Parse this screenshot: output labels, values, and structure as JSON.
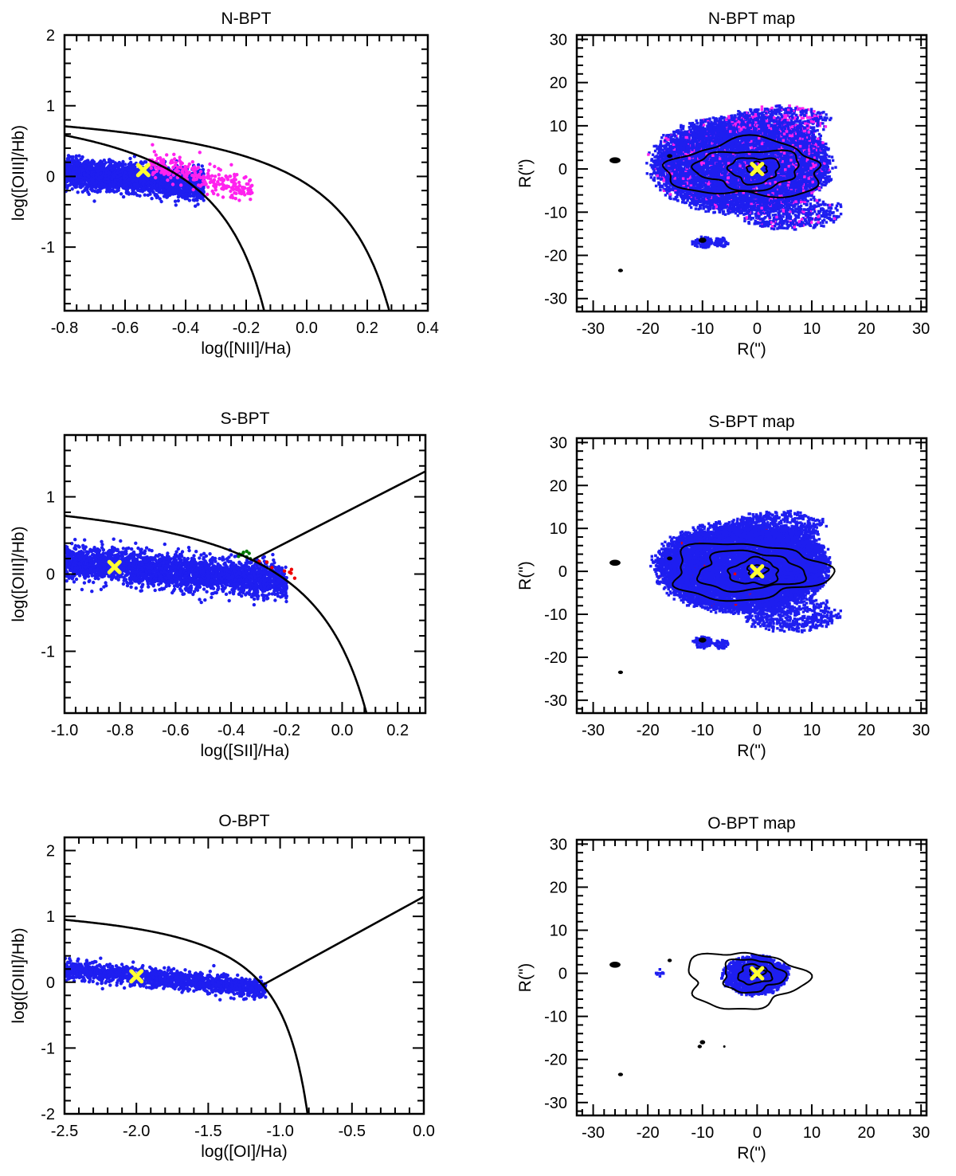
{
  "colors": {
    "star_forming": "#1e1ef0",
    "composite": "#ff22ee",
    "seyfert": "#007a00",
    "liner": "#ee0000",
    "nucleus_marker": "#ffff33",
    "curve": "#000000"
  },
  "chart_data": [
    {
      "type": "scatter",
      "title": "N-BPT",
      "xlabel": "log([NII]/Ha)",
      "ylabel": "log([OIII]/Hb)",
      "xlim": [
        -0.8,
        0.4
      ],
      "ylim": [
        -1.9,
        2.0
      ],
      "xticks": [
        -0.8,
        -0.6,
        -0.4,
        -0.2,
        0.0,
        0.2,
        0.4
      ],
      "xtick_labels": [
        "-0.8",
        "-0.6",
        "-0.4",
        "-0.2",
        "0.0",
        "0.2",
        "0.4"
      ],
      "yticks": [
        -1,
        0,
        1,
        2
      ],
      "ytick_labels": [
        "-1",
        "0",
        "1",
        "2"
      ],
      "curves": [
        {
          "kind": "kauffmann",
          "a": 0.61,
          "b": 0.05,
          "c": 1.3
        },
        {
          "kind": "kewley",
          "a": 0.61,
          "b": 0.47,
          "c": 1.19
        }
      ],
      "clouds": [
        {
          "group": "star-forming",
          "x": [
            -0.8,
            -0.34
          ],
          "y_center": [
            0.06,
            -0.12
          ],
          "y_spread": 0.2,
          "count": 2600
        },
        {
          "group": "composite",
          "x": [
            -0.52,
            -0.18
          ],
          "y_center": [
            0.2,
            -0.2
          ],
          "y_spread": 0.2,
          "count": 260
        }
      ],
      "nucleus": {
        "x": -0.54,
        "y": 0.09
      }
    },
    {
      "type": "scatter",
      "title": "S-BPT",
      "xlabel": "log([SII]/Ha)",
      "ylabel": "log([OIII]/Hb)",
      "xlim": [
        -1.0,
        0.3
      ],
      "ylim": [
        -1.8,
        1.8
      ],
      "xticks": [
        -1.0,
        -0.8,
        -0.6,
        -0.4,
        -0.2,
        0.0,
        0.2
      ],
      "xtick_labels": [
        "-1.0",
        "-0.8",
        "-0.6",
        "-0.4",
        "-0.2",
        "0.0",
        "0.2"
      ],
      "yticks": [
        -1,
        0,
        1
      ],
      "ytick_labels": [
        "-1",
        "0",
        "1"
      ],
      "curves": [
        {
          "kind": "kewley",
          "a": 0.72,
          "b": 0.32,
          "c": 1.3
        },
        {
          "kind": "line",
          "x0": -0.32,
          "y0": 0.19,
          "x1": 0.3,
          "y1": 1.33
        }
      ],
      "clouds": [
        {
          "group": "star-forming",
          "x": [
            -1.0,
            -0.2
          ],
          "y_center": [
            0.17,
            -0.1
          ],
          "y_spread": 0.22,
          "count": 2800
        },
        {
          "group": "seyfert",
          "x": [
            -0.38,
            -0.33
          ],
          "y_center": [
            0.27,
            0.22
          ],
          "y_spread": 0.04,
          "count": 10
        },
        {
          "group": "liner",
          "x": [
            -0.3,
            -0.17
          ],
          "y_center": [
            0.16,
            0.0
          ],
          "y_spread": 0.06,
          "count": 8
        }
      ],
      "nucleus": {
        "x": -0.82,
        "y": 0.09
      }
    },
    {
      "type": "scatter",
      "title": "O-BPT",
      "xlabel": "log([OI]/Ha)",
      "ylabel": "log([OIII]/Hb)",
      "xlim": [
        -2.5,
        0.0
      ],
      "ylim": [
        -2.0,
        2.2
      ],
      "xticks": [
        -2.5,
        -2.0,
        -1.5,
        -1.0,
        -0.5,
        0.0
      ],
      "xtick_labels": [
        "-2.5",
        "-2.0",
        "-1.5",
        "-1.0",
        "-0.5",
        "0.0"
      ],
      "yticks": [
        -2,
        -1,
        0,
        1,
        2
      ],
      "ytick_labels": [
        "-2",
        "-1",
        "0",
        "1",
        "2"
      ],
      "curves": [
        {
          "kind": "kewley",
          "a": 0.73,
          "b": -0.59,
          "c": 1.33
        },
        {
          "kind": "line",
          "x0": -1.12,
          "y0": -0.04,
          "x1": 0.0,
          "y1": 1.3
        }
      ],
      "clouds": [
        {
          "group": "star-forming",
          "x": [
            -2.5,
            -1.1
          ],
          "y_center": [
            0.2,
            -0.1
          ],
          "y_spread": 0.14,
          "count": 1500
        }
      ],
      "nucleus": {
        "x": -2.0,
        "y": 0.09
      }
    },
    {
      "type": "scatter",
      "title": "N-BPT map",
      "xlabel": "R(\")",
      "ylabel": "R(\")",
      "xlim": [
        -33,
        31
      ],
      "ylim": [
        -33,
        31
      ],
      "xticks": [
        -30,
        -20,
        -10,
        0,
        10,
        20,
        30
      ],
      "xtick_labels": [
        "-30",
        "-20",
        "-10",
        "0",
        "10",
        "20",
        "30"
      ],
      "yticks": [
        -30,
        -20,
        -10,
        0,
        10,
        20,
        30
      ],
      "ytick_labels": [
        "-30",
        "-20",
        "-10",
        "0",
        "10",
        "20",
        "30"
      ],
      "regions": [
        {
          "cx": -3.0,
          "cy": 1.0,
          "rx": 15.5,
          "ry": 10.5,
          "count": 9000,
          "mix": 0.06,
          "group": "star-forming",
          "alt": "composite"
        },
        {
          "cx": 8.0,
          "cy": 2.0,
          "rx": 5.0,
          "ry": 8.0,
          "count": 900,
          "mix": 0.15,
          "group": "star-forming",
          "alt": "composite"
        },
        {
          "cx": 4.0,
          "cy": 11.0,
          "rx": 9.0,
          "ry": 3.5,
          "count": 600,
          "mix": 0.2,
          "group": "star-forming",
          "alt": "composite"
        },
        {
          "cx": 6.0,
          "cy": -10.0,
          "rx": 9.0,
          "ry": 4.0,
          "count": 600,
          "mix": 0.12,
          "group": "star-forming",
          "alt": "composite"
        },
        {
          "cx": -10.0,
          "cy": -17.0,
          "rx": 1.8,
          "ry": 1.3,
          "count": 90,
          "mix": 0.0,
          "group": "star-forming",
          "alt": "composite"
        },
        {
          "cx": -6.5,
          "cy": -17.0,
          "rx": 1.4,
          "ry": 1.1,
          "count": 60,
          "mix": 0.0,
          "group": "star-forming",
          "alt": "composite"
        }
      ],
      "contours": [
        {
          "cx": -2.0,
          "cy": 0.0,
          "rx": 14.0,
          "ry": 6.5
        },
        {
          "cx": -1.5,
          "cy": 0.0,
          "rx": 9.5,
          "ry": 4.5
        },
        {
          "cx": -0.5,
          "cy": -0.2,
          "rx": 4.5,
          "ry": 3.0
        },
        {
          "cx": 0.0,
          "cy": 0.2,
          "rx": 1.8,
          "ry": 1.3
        }
      ],
      "blobs": [
        {
          "x": -26.0,
          "y": 2.0,
          "rx": 1.0,
          "ry": 0.7
        },
        {
          "x": -25.0,
          "y": -23.5,
          "rx": 0.45,
          "ry": 0.4
        },
        {
          "x": -10.0,
          "y": -16.5,
          "rx": 0.7,
          "ry": 0.6
        },
        {
          "x": -16.0,
          "y": 3.0,
          "rx": 0.5,
          "ry": 0.45
        }
      ],
      "nucleus": {
        "x": 0.0,
        "y": 0.0
      }
    },
    {
      "type": "scatter",
      "title": "S-BPT map",
      "xlabel": "R(\")",
      "ylabel": "R(\")",
      "xlim": [
        -33,
        31
      ],
      "ylim": [
        -33,
        31
      ],
      "xticks": [
        -30,
        -20,
        -10,
        0,
        10,
        20,
        30
      ],
      "xtick_labels": [
        "-30",
        "-20",
        "-10",
        "0",
        "10",
        "20",
        "30"
      ],
      "yticks": [
        -30,
        -20,
        -10,
        0,
        10,
        20,
        30
      ],
      "ytick_labels": [
        "-30",
        "-20",
        "-10",
        "0",
        "10",
        "20",
        "30"
      ],
      "regions": [
        {
          "cx": -3.0,
          "cy": 1.0,
          "rx": 15.0,
          "ry": 10.0,
          "count": 9000,
          "mix": 0.004,
          "group": "star-forming",
          "alt": "liner"
        },
        {
          "cx": 8.0,
          "cy": 2.0,
          "rx": 5.0,
          "ry": 7.5,
          "count": 800,
          "mix": 0.0,
          "group": "star-forming",
          "alt": "liner"
        },
        {
          "cx": 4.0,
          "cy": 10.5,
          "rx": 8.0,
          "ry": 3.5,
          "count": 500,
          "mix": 0.0,
          "group": "star-forming",
          "alt": "liner"
        },
        {
          "cx": 6.0,
          "cy": -10.0,
          "rx": 8.5,
          "ry": 4.0,
          "count": 600,
          "mix": 0.0,
          "group": "star-forming",
          "alt": "liner"
        },
        {
          "cx": -10.0,
          "cy": -16.5,
          "rx": 1.7,
          "ry": 1.3,
          "count": 90,
          "mix": 0.0,
          "group": "star-forming",
          "alt": "liner"
        },
        {
          "cx": -6.5,
          "cy": -17.0,
          "rx": 1.4,
          "ry": 1.0,
          "count": 60,
          "mix": 0.0,
          "group": "star-forming",
          "alt": "liner"
        }
      ],
      "contours": [
        {
          "cx": -2.0,
          "cy": 0.0,
          "rx": 14.0,
          "ry": 6.5
        },
        {
          "cx": -1.5,
          "cy": 0.0,
          "rx": 9.5,
          "ry": 4.5
        },
        {
          "cx": -0.5,
          "cy": -0.2,
          "rx": 4.5,
          "ry": 3.0
        },
        {
          "cx": 0.0,
          "cy": 0.2,
          "rx": 1.8,
          "ry": 1.3
        }
      ],
      "blobs": [
        {
          "x": -26.0,
          "y": 2.0,
          "rx": 1.0,
          "ry": 0.7
        },
        {
          "x": -25.0,
          "y": -23.5,
          "rx": 0.45,
          "ry": 0.4
        },
        {
          "x": -10.0,
          "y": -16.0,
          "rx": 0.7,
          "ry": 0.6
        },
        {
          "x": -16.0,
          "y": 3.0,
          "rx": 0.5,
          "ry": 0.45
        }
      ],
      "nucleus": {
        "x": 0.0,
        "y": 0.0
      }
    },
    {
      "type": "scatter",
      "title": "O-BPT map",
      "xlabel": "R(\")",
      "ylabel": "R(\")",
      "xlim": [
        -33,
        31
      ],
      "ylim": [
        -33,
        31
      ],
      "xticks": [
        -30,
        -20,
        -10,
        0,
        10,
        20,
        30
      ],
      "xtick_labels": [
        "-30",
        "-20",
        "-10",
        "0",
        "10",
        "20",
        "30"
      ],
      "yticks": [
        -30,
        -20,
        -10,
        0,
        10,
        20,
        30
      ],
      "ytick_labels": [
        "-30",
        "-20",
        "-10",
        "0",
        "10",
        "20",
        "30"
      ],
      "regions": [
        {
          "cx": -0.5,
          "cy": -0.5,
          "rx": 5.5,
          "ry": 4.5,
          "count": 1200,
          "mix": 0.0,
          "group": "star-forming",
          "alt": "liner"
        },
        {
          "cx": 3.5,
          "cy": 0.5,
          "rx": 2.5,
          "ry": 2.0,
          "count": 150,
          "mix": 0.0,
          "group": "star-forming",
          "alt": "liner"
        },
        {
          "cx": -18.0,
          "cy": 0.0,
          "rx": 1.0,
          "ry": 1.0,
          "count": 12,
          "mix": 0.0,
          "group": "star-forming",
          "alt": "liner"
        }
      ],
      "contours": [
        {
          "cx": -2.5,
          "cy": -1.5,
          "rx": 10.5,
          "ry": 6.5
        },
        {
          "cx": -1.0,
          "cy": -0.5,
          "rx": 5.5,
          "ry": 3.8
        },
        {
          "cx": -0.5,
          "cy": -0.3,
          "rx": 3.0,
          "ry": 2.2
        },
        {
          "cx": 0.0,
          "cy": 0.2,
          "rx": 1.4,
          "ry": 1.0
        }
      ],
      "blobs": [
        {
          "x": -26.0,
          "y": 2.0,
          "rx": 1.0,
          "ry": 0.7
        },
        {
          "x": -25.0,
          "y": -23.5,
          "rx": 0.45,
          "ry": 0.4
        },
        {
          "x": -10.0,
          "y": -16.0,
          "rx": 0.5,
          "ry": 0.5
        },
        {
          "x": -10.5,
          "y": -17.0,
          "rx": 0.4,
          "ry": 0.4
        },
        {
          "x": -6.0,
          "y": -17.0,
          "rx": 0.2,
          "ry": 0.2
        },
        {
          "x": -16.0,
          "y": 3.0,
          "rx": 0.4,
          "ry": 0.4
        }
      ],
      "nucleus": {
        "x": 0.0,
        "y": 0.0
      }
    }
  ]
}
